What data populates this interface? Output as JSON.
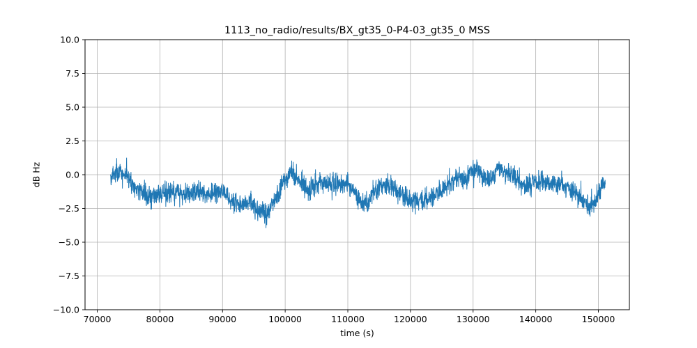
{
  "chart_data": {
    "type": "line",
    "title": "1113_no_radio/results/BX_gt35_0-P4-03_gt35_0 MSS",
    "xlabel": "time (s)",
    "ylabel": "dB Hz",
    "xlim": [
      68050,
      154950
    ],
    "ylim": [
      -10.0,
      10.0
    ],
    "x_ticks": [
      70000,
      80000,
      90000,
      100000,
      110000,
      120000,
      130000,
      140000,
      150000
    ],
    "y_ticks": [
      -10.0,
      -7.5,
      -5.0,
      -2.5,
      0.0,
      2.5,
      5.0,
      7.5,
      10.0
    ],
    "grid": true,
    "legend": "none",
    "line_color": "#1f77b4",
    "grid_color": "#b0b0b0",
    "series": [
      {
        "name": "MSS",
        "x_range": [
          72100,
          151100
        ],
        "n_points": 2600,
        "noise_sigma": 0.55,
        "seed": 42,
        "trend_anchors_x": [
          72100,
          73000,
          74500,
          76000,
          78000,
          80000,
          82000,
          84000,
          86000,
          88000,
          89500,
          91000,
          93000,
          94500,
          96000,
          97000,
          98500,
          100000,
          101000,
          102500,
          104000,
          105500,
          107000,
          108500,
          110000,
          111000,
          112500,
          114000,
          115500,
          117000,
          118500,
          120000,
          121500,
          123000,
          124500,
          126000,
          127500,
          129000,
          130500,
          132000,
          133000,
          134000,
          135000,
          136500,
          138000,
          139500,
          141000,
          142500,
          144000,
          145500,
          147000,
          148500,
          149500,
          150500,
          151100
        ],
        "trend_anchors_y": [
          -0.2,
          0.2,
          0.0,
          -1.0,
          -1.6,
          -1.4,
          -1.3,
          -1.4,
          -1.3,
          -1.5,
          -1.2,
          -1.7,
          -2.3,
          -2.0,
          -2.8,
          -3.0,
          -1.8,
          -0.3,
          0.3,
          -0.6,
          -1.2,
          -0.4,
          -0.6,
          -0.7,
          -0.6,
          -1.2,
          -2.4,
          -1.3,
          -0.7,
          -0.9,
          -1.6,
          -1.9,
          -1.8,
          -1.9,
          -1.3,
          -0.8,
          -0.3,
          -0.2,
          0.3,
          -0.1,
          -0.4,
          0.5,
          0.4,
          -0.3,
          -0.9,
          -0.6,
          -0.4,
          -0.8,
          -0.7,
          -1.2,
          -1.6,
          -2.3,
          -2.0,
          -0.9,
          -0.6
        ]
      }
    ]
  }
}
